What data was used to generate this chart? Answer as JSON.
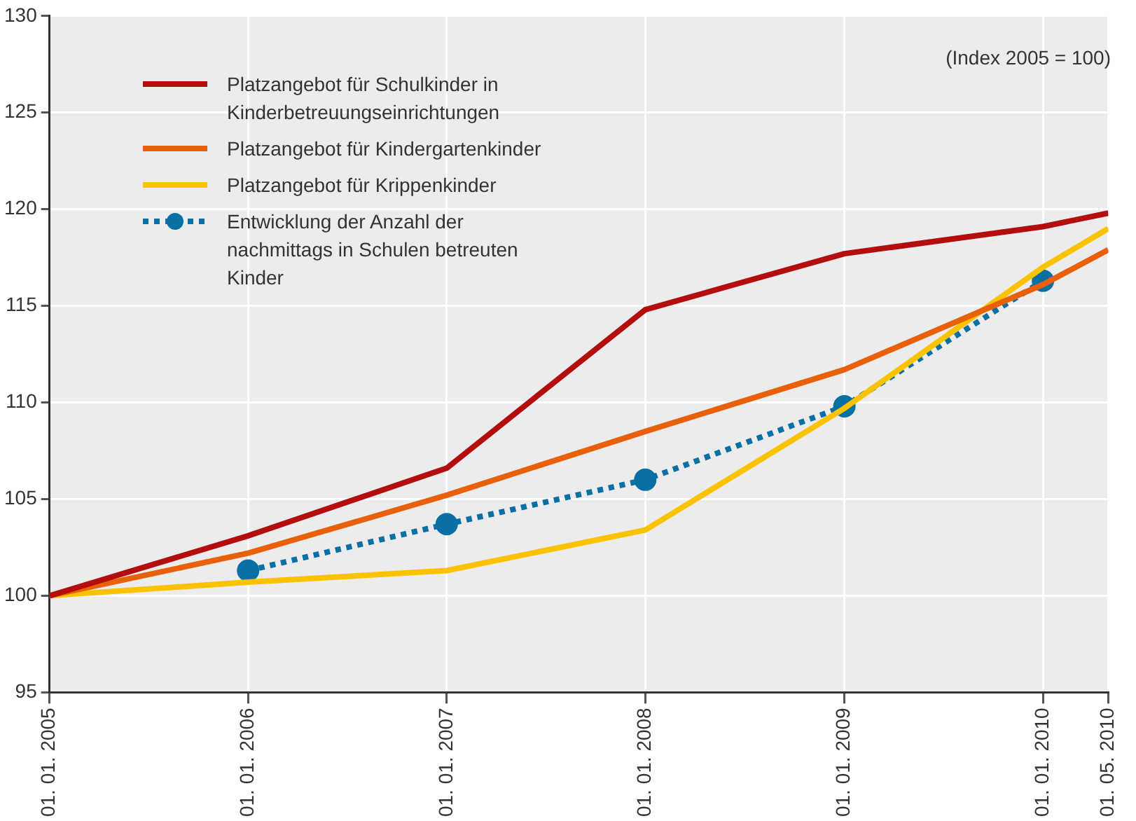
{
  "chart_data": {
    "type": "line",
    "annotations": [
      "(Index 2005 = 100)"
    ],
    "x": [
      "2005-01-01",
      "2006-01-01",
      "2007-01-01",
      "2008-01-01",
      "2009-01-01",
      "2010-01-01",
      "2010-05-01"
    ],
    "xlim": [
      "2005-01-01",
      "2010-05-01"
    ],
    "xticks": [
      {
        "value": "2005-01-01",
        "label": "01. 01. 2005"
      },
      {
        "value": "2006-01-01",
        "label": "01. 01. 2006"
      },
      {
        "value": "2007-01-01",
        "label": "01. 01. 2007"
      },
      {
        "value": "2008-01-01",
        "label": "01. 01. 2008"
      },
      {
        "value": "2009-01-01",
        "label": "01. 01. 2009"
      },
      {
        "value": "2010-01-01",
        "label": "01. 01. 2010"
      },
      {
        "value": "2010-05-01",
        "label": "01. 05. 2010"
      }
    ],
    "ylim": [
      95,
      130
    ],
    "yticks": [
      95,
      100,
      105,
      110,
      115,
      120,
      125,
      130
    ],
    "grid": true,
    "legend": "top left",
    "series": [
      {
        "name": "Platzangebot für Schulkinder in Kinderbetreuungseinrichtungen",
        "color": "#b30d0d",
        "marker": "none",
        "line_style": "solid",
        "values": [
          100,
          103.1,
          106.6,
          114.8,
          117.7,
          119.1,
          119.8
        ]
      },
      {
        "name": "Platzangebot für Kindergartenkinder",
        "color": "#e8600a",
        "marker": "none",
        "line_style": "solid",
        "values": [
          100,
          102.2,
          105.2,
          108.5,
          111.7,
          116.1,
          117.9
        ]
      },
      {
        "name": "Platzangebot für Krippenkinder",
        "color": "#fbc200",
        "marker": "none",
        "line_style": "solid",
        "values": [
          100,
          100.7,
          101.3,
          103.4,
          109.7,
          117.0,
          119.0
        ]
      },
      {
        "name": "Entwicklung der Anzahl der nachmittags in Schulen betreuten Kinder",
        "color": "#0a6fa3",
        "marker": "circle",
        "line_style": "dotted",
        "values": [
          null,
          101.3,
          103.7,
          106.0,
          109.8,
          116.3,
          null
        ]
      }
    ]
  }
}
